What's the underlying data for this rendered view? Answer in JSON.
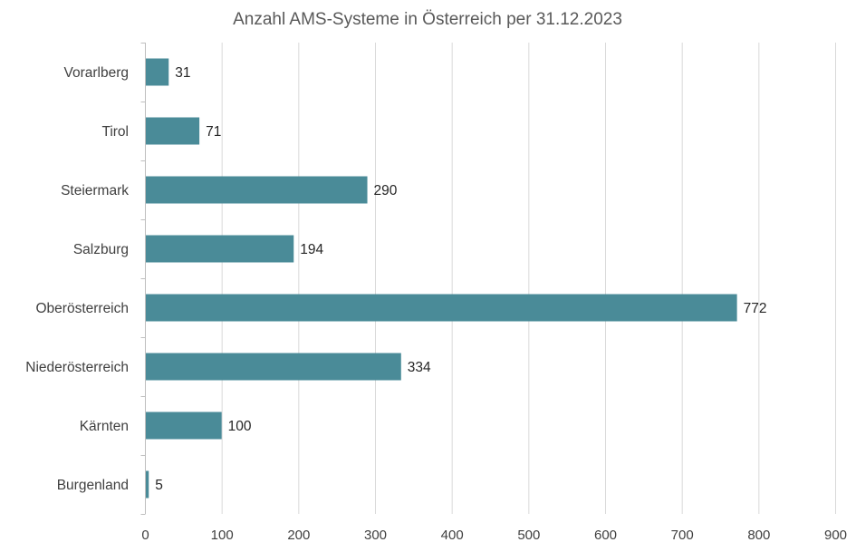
{
  "chart_data": {
    "type": "bar",
    "orientation": "horizontal",
    "title": "Anzahl AMS-Systeme in Österreich per 31.12.2023",
    "xlabel": "",
    "ylabel": "",
    "categories": [
      "Vorarlberg",
      "Tirol",
      "Steiermark",
      "Salzburg",
      "Oberösterreich",
      "Niederösterreich",
      "Kärnten",
      "Burgenland"
    ],
    "values": [
      31,
      71,
      290,
      194,
      772,
      334,
      100,
      5
    ],
    "data_labels": [
      "31",
      "71",
      "290",
      "194",
      "772",
      "334",
      "100",
      "5"
    ],
    "xlim": [
      0,
      900
    ],
    "x_ticks": [
      "0",
      "100",
      "200",
      "300",
      "400",
      "500",
      "600",
      "700",
      "800",
      "900"
    ],
    "grid": true,
    "legend": "none",
    "bar_color": "#4a8b98"
  }
}
